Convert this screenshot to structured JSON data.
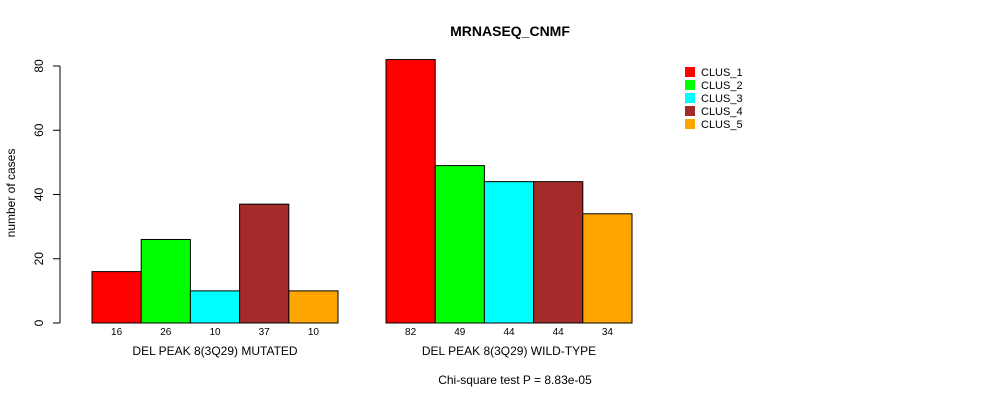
{
  "chart_data": {
    "type": "bar",
    "title": "MRNASEQ_CNMF",
    "ylabel": "number of cases",
    "xlabel": "",
    "ylim": [
      0,
      80
    ],
    "yticks": [
      0,
      20,
      40,
      60,
      80
    ],
    "groups": [
      "DEL PEAK  8(3Q29) MUTATED",
      "DEL PEAK  8(3Q29) WILD-TYPE"
    ],
    "series": [
      {
        "name": "CLUS_1",
        "color": "#ff0000",
        "values": [
          16,
          82
        ]
      },
      {
        "name": "CLUS_2",
        "color": "#00ff00",
        "values": [
          26,
          49
        ]
      },
      {
        "name": "CLUS_3",
        "color": "#00ffff",
        "values": [
          10,
          44
        ]
      },
      {
        "name": "CLUS_4",
        "color": "#a52a2a",
        "values": [
          37,
          44
        ]
      },
      {
        "name": "CLUS_5",
        "color": "#ffa500",
        "values": [
          10,
          34
        ]
      }
    ],
    "legend_position": "top-right",
    "grid": false
  },
  "footer": "Chi-square test P = 8.83e-05"
}
